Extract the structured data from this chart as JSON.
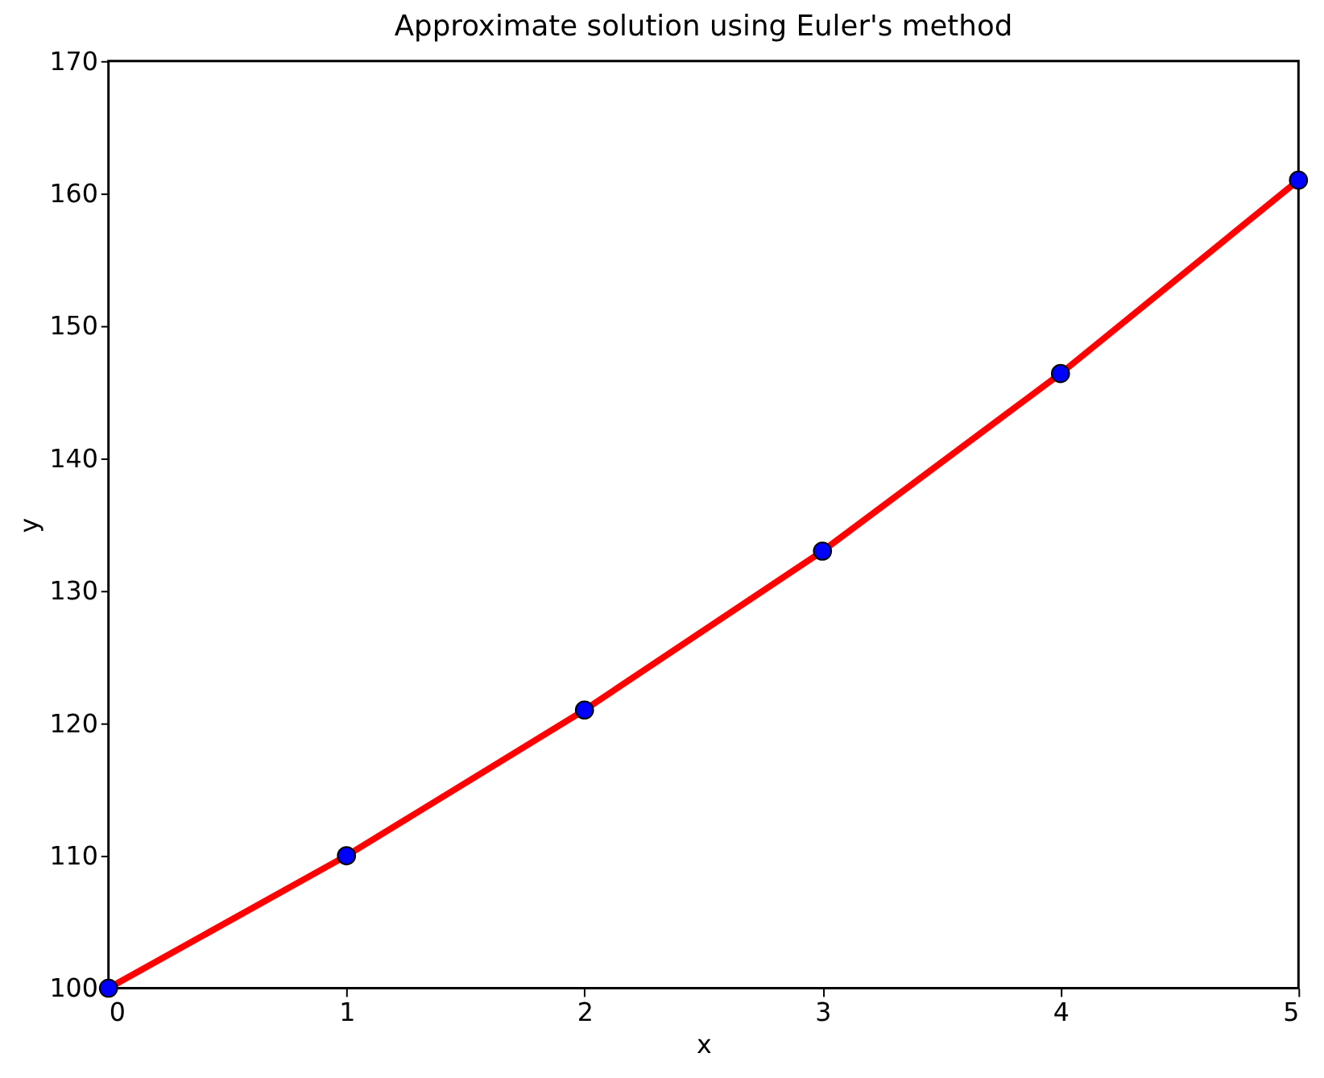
{
  "chart_data": {
    "type": "line",
    "title": "Approximate solution using Euler's method",
    "xlabel": "x",
    "ylabel": "y",
    "x": [
      0,
      1,
      2,
      3,
      4,
      5
    ],
    "series": [
      {
        "color": "#ff0000",
        "values": [
          100,
          110,
          121,
          133,
          146.4,
          161
        ],
        "marker": "none",
        "line_style": "solid"
      },
      {
        "type": "scatter",
        "color": "#0000ff",
        "values": [
          100,
          110,
          121,
          133,
          146.4,
          161
        ],
        "marker": "circle"
      }
    ],
    "xlim": [
      0,
      5
    ],
    "xticks": [
      0,
      1,
      2,
      3,
      4,
      5
    ],
    "ylim": [
      100,
      170
    ],
    "yticks": [
      100,
      110,
      120,
      130,
      140,
      150,
      160,
      170
    ],
    "grid": false
  }
}
